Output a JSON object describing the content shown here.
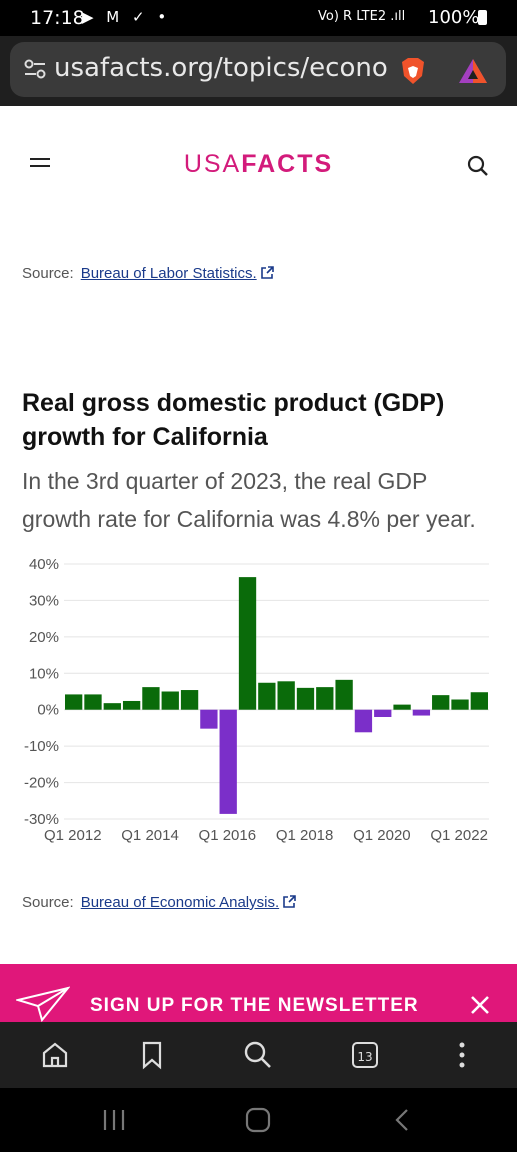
{
  "status_bar": {
    "time": "17:18",
    "left_icons": "▶ M ✓ •",
    "right_icons": "Vo) R LTE2 .ıll",
    "battery": "100%"
  },
  "browser": {
    "url": "usafacts.org/topics/econo",
    "tab_count": "13"
  },
  "site": {
    "logo_light": "USA",
    "logo_bold": "FACTS",
    "brand_color": "#d31b7b"
  },
  "source_top": {
    "label": "Source:",
    "link": "Bureau of Labor Statistics."
  },
  "chart_section": {
    "title": "Real gross domestic product (GDP) growth for California",
    "subtitle": "In the 3rd quarter of 2023, the real GDP growth rate for California was 4.8% per year."
  },
  "chart_data": {
    "type": "bar",
    "ylim": [
      -30,
      40
    ],
    "yticks": [
      "40%",
      "30%",
      "20%",
      "10%",
      "0%",
      "-10%",
      "-20%",
      "-30%"
    ],
    "ytick_values": [
      40,
      30,
      20,
      10,
      0,
      -10,
      -20,
      -30
    ],
    "xticks": [
      "Q1 2012",
      "Q1 2014",
      "Q1 2016",
      "Q1 2018",
      "Q1 2020",
      "Q1 2022"
    ],
    "xtick_index": [
      0,
      4,
      8,
      12,
      16,
      20
    ],
    "values": [
      4.2,
      4.2,
      1.8,
      2.4,
      6.2,
      5.0,
      5.4,
      -5.2,
      -28.6,
      36.4,
      7.4,
      7.8,
      6.0,
      6.2,
      8.2,
      -6.2,
      -2.0,
      1.4,
      -1.6,
      4.0,
      2.8,
      4.8
    ],
    "positive_color": "#0a6b0a",
    "negative_color": "#7b2fc9",
    "grid": true
  },
  "source_bottom": {
    "label": "Source:",
    "link": "Bureau of Economic Analysis."
  },
  "newsletter": {
    "label": "SIGN UP FOR THE NEWSLETTER",
    "color": "#e0177a"
  }
}
